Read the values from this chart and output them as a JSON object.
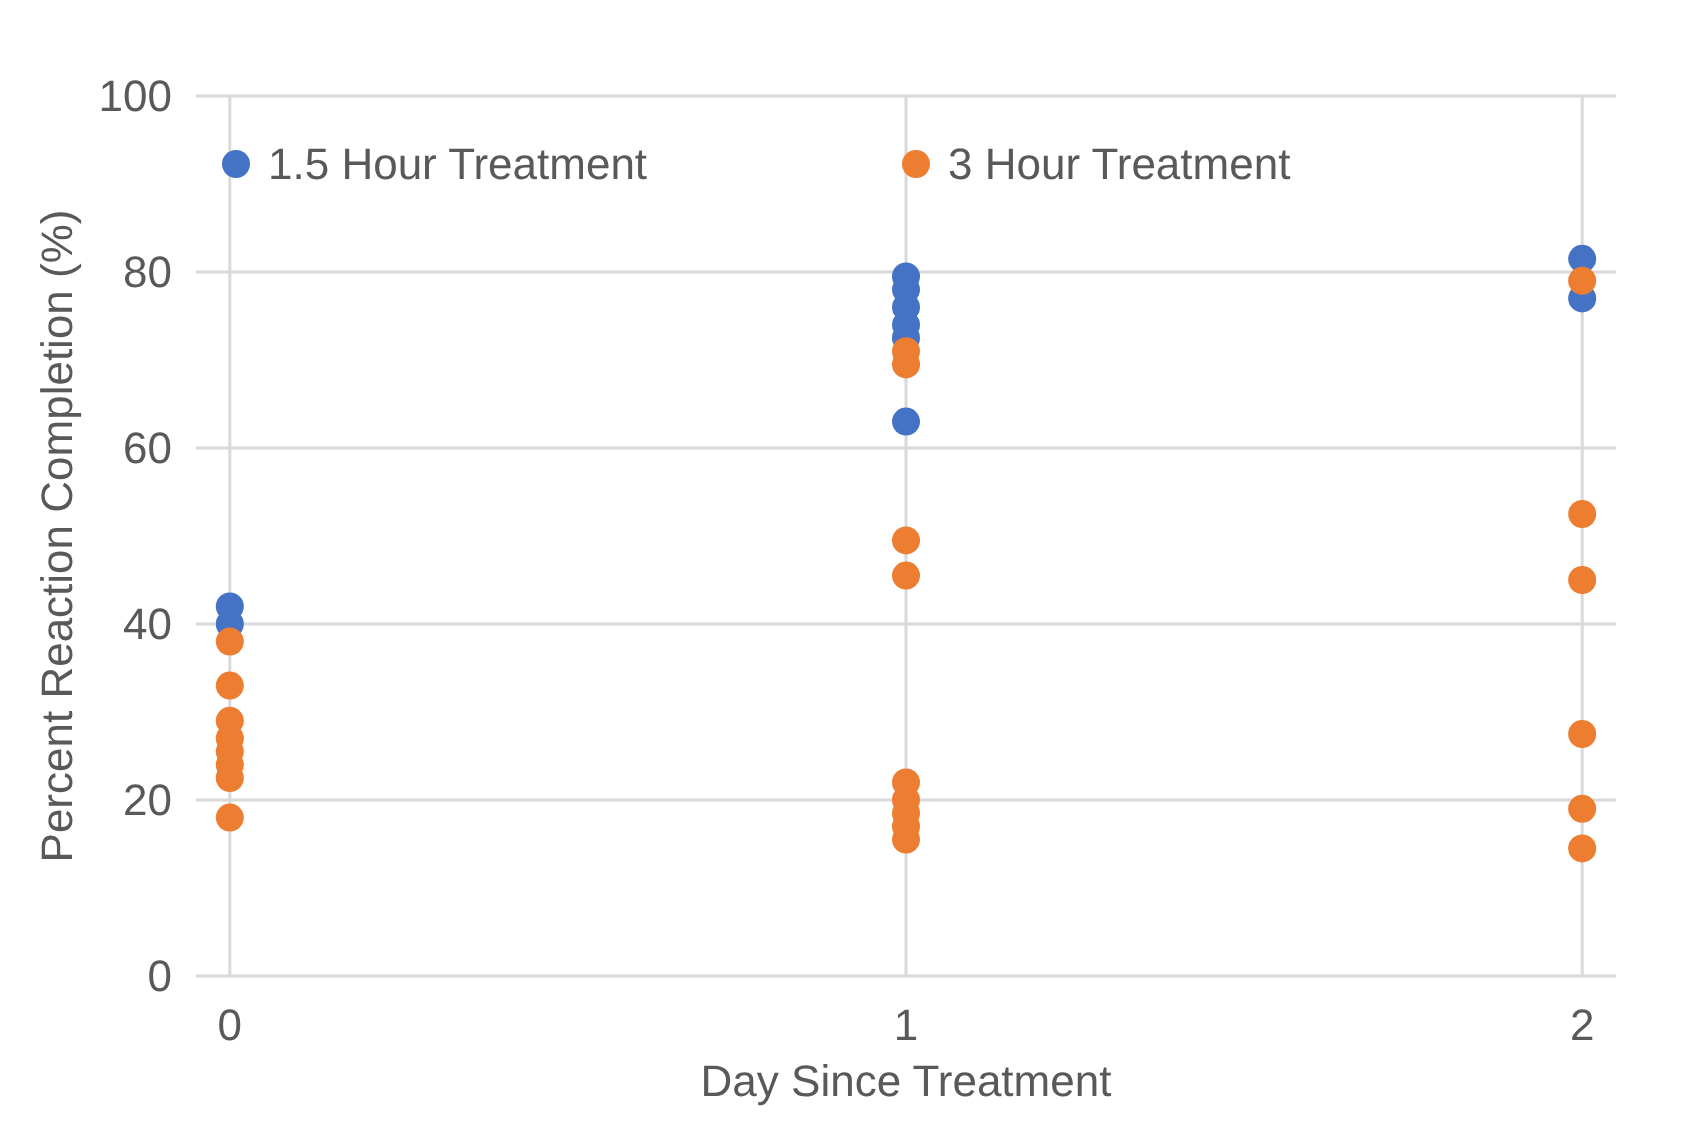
{
  "chart_data": {
    "type": "scatter",
    "xlabel": "Day Since Treatment",
    "ylabel": "Percent Reaction Completion (%)",
    "xlim": [
      -0.05,
      2.05
    ],
    "xticks": [
      0,
      1,
      2
    ],
    "ylim": [
      0,
      100
    ],
    "yticks": [
      0,
      20,
      40,
      60,
      80,
      100
    ],
    "grid": true,
    "legend": "top",
    "marker": "circle",
    "series": [
      {
        "name": "1.5 Hour Treatment",
        "color": "#4472c4",
        "x": [
          0,
          0,
          1,
          1,
          1,
          1,
          1,
          1,
          2,
          2
        ],
        "values": [
          42,
          40,
          79.5,
          78,
          76,
          74,
          72.5,
          63,
          81.5,
          77
        ]
      },
      {
        "name": "3 Hour Treatment",
        "color": "#ed7d31",
        "x": [
          0,
          0,
          0,
          0,
          0,
          0,
          0,
          0,
          1,
          1,
          1,
          1,
          1,
          1,
          1,
          1,
          1,
          2,
          2,
          2,
          2,
          2,
          2
        ],
        "values": [
          38,
          33,
          29,
          27,
          25.5,
          24,
          22.5,
          18,
          71,
          69.5,
          49.5,
          45.5,
          22,
          20,
          18.5,
          17,
          15.5,
          79,
          52.5,
          45,
          27.5,
          19,
          14.5
        ]
      }
    ]
  }
}
